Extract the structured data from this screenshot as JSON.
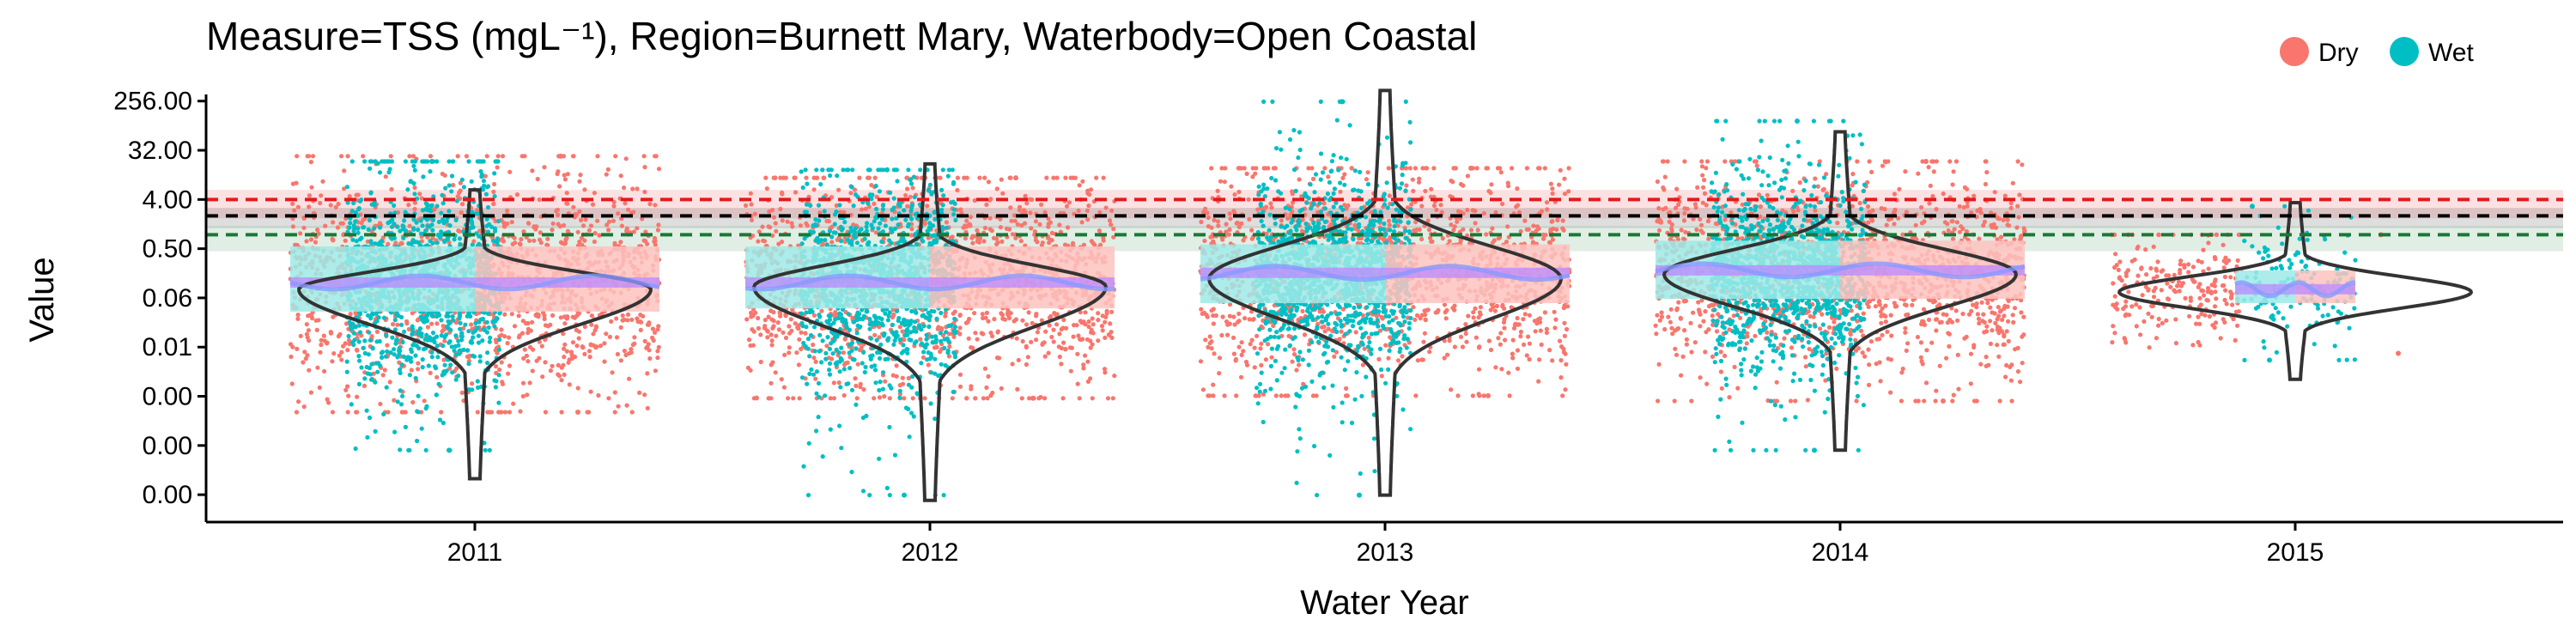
{
  "chart_data": {
    "type": "scatter",
    "title": "Measure=TSS (mgL⁻¹), Region=Burnett Mary, Waterbody=Open Coastal",
    "xlabel": "Water Year",
    "ylabel": "Value",
    "y_scale": "log2",
    "y_ticks": [
      {
        "value": 256,
        "label": "256.00"
      },
      {
        "value": 32,
        "label": "32.00"
      },
      {
        "value": 4,
        "label": "4.00"
      },
      {
        "value": 0.5,
        "label": "0.50"
      },
      {
        "value": 0.0625,
        "label": "0.06"
      },
      {
        "value": 0.0078125,
        "label": "0.01"
      },
      {
        "value": 0.0009765625,
        "label": "0.00"
      },
      {
        "value": 0.0001220703125,
        "label": "0.00"
      },
      {
        "value": 1.52587890625e-05,
        "label": "0.00"
      }
    ],
    "ylim": [
      4.8e-06,
      700
    ],
    "categories": [
      "2011",
      "2012",
      "2013",
      "2014",
      "2015"
    ],
    "legend": {
      "position": "top-right",
      "entries": [
        {
          "name": "Dry",
          "color": "#F8766D"
        },
        {
          "name": "Wet",
          "color": "#00BFC4"
        }
      ]
    },
    "guidelines": [
      {
        "value": 4.0,
        "color": "#E41A1C",
        "band": [
          1.8,
          6.0
        ]
      },
      {
        "value": 2.0,
        "color": "#000000",
        "band": [
          1.2,
          2.8
        ]
      },
      {
        "value": 0.9,
        "color": "#1B7837",
        "band": [
          0.45,
          1.3
        ]
      }
    ],
    "years": [
      {
        "year": "2011",
        "wet": {
          "median": 0.12,
          "q1": 0.035,
          "q3": 0.55,
          "min": 0.0001,
          "max": 20
        },
        "dry": {
          "median": 0.12,
          "q1": 0.035,
          "q3": 0.55,
          "min": 0.0005,
          "max": 25
        },
        "violin": {
          "mode": 0.09,
          "min": 3e-05,
          "max": 6
        }
      },
      {
        "year": "2012",
        "wet": {
          "median": 0.12,
          "q1": 0.04,
          "q3": 0.55,
          "min": 1.5e-05,
          "max": 14
        },
        "dry": {
          "median": 0.12,
          "q1": 0.04,
          "q3": 0.55,
          "min": 0.0009,
          "max": 10
        },
        "violin": {
          "mode": 0.1,
          "min": 1.2e-05,
          "max": 18
        }
      },
      {
        "year": "2013",
        "wet": {
          "median": 0.18,
          "q1": 0.05,
          "q3": 0.6,
          "min": 1.5e-05,
          "max": 250
        },
        "dry": {
          "median": 0.18,
          "q1": 0.05,
          "q3": 0.6,
          "min": 0.001,
          "max": 15
        },
        "violin": {
          "mode": 0.14,
          "min": 1.5e-05,
          "max": 400
        }
      },
      {
        "year": "2014",
        "wet": {
          "median": 0.2,
          "q1": 0.06,
          "q3": 0.7,
          "min": 0.0001,
          "max": 110
        },
        "dry": {
          "median": 0.2,
          "q1": 0.06,
          "q3": 0.7,
          "min": 0.0008,
          "max": 20
        },
        "violin": {
          "mode": 0.17,
          "min": 0.0001,
          "max": 70
        }
      },
      {
        "year": "2015",
        "wet": {
          "median": 0.09,
          "q1": 0.05,
          "q3": 0.2,
          "min": 0.0045,
          "max": 3
        },
        "dry": {
          "median": 0.09,
          "q1": 0.05,
          "q3": 0.2,
          "min": 0.006,
          "max": 0.9
        },
        "violin": {
          "mode": 0.08,
          "min": 0.002,
          "max": 3.5
        }
      }
    ]
  }
}
